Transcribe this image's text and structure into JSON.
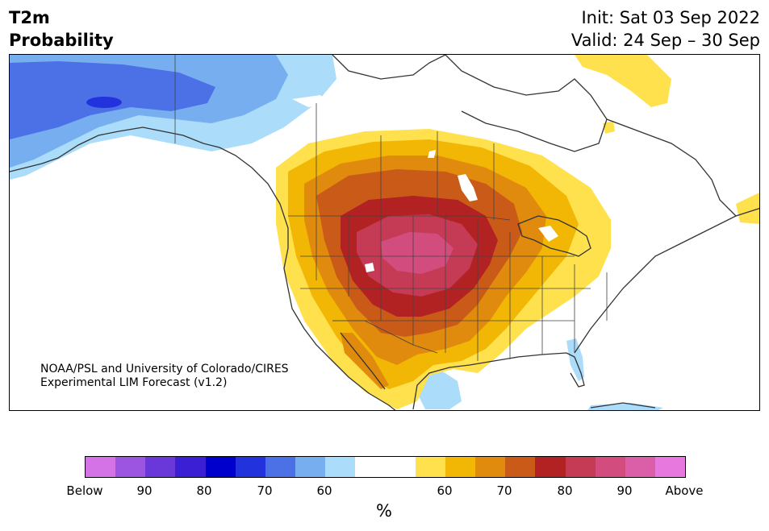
{
  "header": {
    "variable": "T2m",
    "subtitle": "Probability",
    "init": "Init: Sat 03 Sep 2022",
    "valid": "Valid: 24 Sep – 30 Sep"
  },
  "credit": {
    "line1": "NOAA/PSL and University of Colorado/CIRES",
    "line2": "Experimental LIM Forecast (v1.2)"
  },
  "colorbar": {
    "unit": "%",
    "colors": [
      "#d473e6",
      "#9c55e0",
      "#6a38d8",
      "#3a1fd4",
      "#0000cc",
      "#2233dd",
      "#4c70e6",
      "#76aef0",
      "#abdcf9",
      "#ffffff",
      "#ffffff",
      "#ffe14d",
      "#f2b705",
      "#e08a0e",
      "#c95a18",
      "#b22222",
      "#c53a55",
      "#d24d7e",
      "#da5fa8",
      "#e678de"
    ],
    "tick_labels": [
      "Below",
      "90",
      "80",
      "70",
      "60",
      "60",
      "70",
      "80",
      "90",
      "Above"
    ]
  },
  "palette": {
    "below_90": "#4c70e6",
    "below_95": "#2233dd",
    "below_70": "#76aef0",
    "below_60": "#abdcf9",
    "above_60": "#ffe14d",
    "above_65": "#f2b705",
    "above_70": "#e08a0e",
    "above_75": "#c95a18",
    "above_80": "#b22222",
    "above_85": "#c53a55",
    "above_90": "#d24d7e",
    "coast": "#333333",
    "border": "#444444"
  }
}
